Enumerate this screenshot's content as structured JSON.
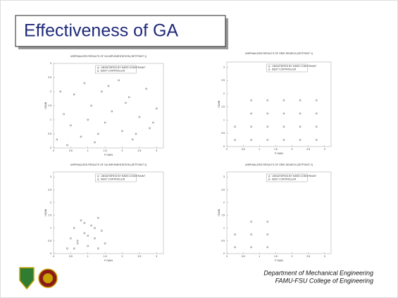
{
  "header": {
    "title": "Effectiveness of GA"
  },
  "chart_data": [
    {
      "type": "scatter",
      "title": "UNPENALIZED RESULTS OF GA IMPLEMENTATION (SETPOINT 1)",
      "x_label": "P GAIN",
      "y_label": "I GAIN",
      "legend": [
        "UNSATISFIED BY HARD CONSTRAINT",
        "BEST CONTROLLER"
      ],
      "color": "#555555",
      "x": [
        0.1,
        0.3,
        0.5,
        0.6,
        0.8,
        0.9,
        1.1,
        1.2,
        1.4,
        1.5,
        1.7,
        1.9,
        2.0,
        2.2,
        2.3,
        2.5,
        2.7,
        2.8,
        3.0,
        0.4,
        1.0,
        1.6,
        2.4,
        0.2,
        1.3,
        2.1,
        2.9
      ],
      "y": [
        0.3,
        1.2,
        0.8,
        1.9,
        0.4,
        2.3,
        1.5,
        0.2,
        2.0,
        0.9,
        1.3,
        2.4,
        0.6,
        1.8,
        0.3,
        1.1,
        2.1,
        0.7,
        1.4,
        0.1,
        1.0,
        2.2,
        0.5,
        2.0,
        0.5,
        1.6,
        0.9
      ],
      "xlim": [
        0,
        3.2
      ],
      "ylim": [
        0,
        3
      ],
      "xticks": [
        0,
        0.5,
        1,
        1.5,
        2,
        2.5,
        3
      ],
      "yticks": [
        0,
        0.5,
        1,
        1.5,
        2,
        2.5,
        3
      ]
    },
    {
      "type": "scatter",
      "title": "UNPENALIZED RESULTS OF GRID SEARCH (SETPOINT 1)",
      "x_label": "P GAIN",
      "y_label": "I GAIN",
      "legend": [
        "UNSATISFIED BY HARD CONSTRAINT",
        "BEST CONTROLLER"
      ],
      "color": "#555555",
      "x": [
        0.25,
        0.25,
        0.75,
        0.75,
        0.75,
        0.75,
        1.25,
        1.25,
        1.25,
        1.25,
        1.75,
        1.75,
        1.75,
        1.75,
        2.25,
        2.25,
        2.25,
        2.25,
        2.75,
        2.75,
        2.75,
        2.75
      ],
      "y": [
        0.25,
        0.75,
        0.25,
        0.75,
        1.25,
        1.75,
        0.25,
        0.75,
        1.25,
        1.75,
        0.25,
        0.75,
        1.25,
        1.75,
        0.25,
        0.75,
        1.25,
        1.75,
        0.25,
        0.75,
        1.25,
        1.75
      ],
      "xlim": [
        0,
        3.2
      ],
      "ylim": [
        0,
        3.2
      ],
      "xticks": [
        0,
        0.5,
        1,
        1.5,
        2,
        2.5,
        3
      ],
      "yticks": [
        0,
        0.5,
        1,
        1.5,
        2,
        2.5,
        3
      ]
    },
    {
      "type": "scatter",
      "title": "UNPENALIZED RESULTS OF GA IMPLEMENTATION (SETPOINT 2)",
      "x_label": "P GAIN",
      "y_label": "I GAIN",
      "legend": [
        "UNSATISFIED BY HARD CONSTRAINT",
        "BEST CONTROLLER"
      ],
      "color": "#555555",
      "x": [
        0.4,
        0.5,
        0.6,
        0.7,
        0.8,
        0.9,
        1.0,
        1.1,
        1.2,
        1.3,
        1.4,
        1.5,
        0.6,
        0.9,
        1.2,
        1.0,
        0.7,
        1.3
      ],
      "y": [
        0.2,
        0.6,
        1.0,
        0.4,
        1.3,
        0.8,
        0.3,
        1.1,
        0.6,
        1.4,
        0.9,
        0.4,
        0.2,
        1.2,
        1.0,
        0.7,
        0.5,
        0.2
      ],
      "xlim": [
        0,
        3.2
      ],
      "ylim": [
        0,
        3.2
      ],
      "xticks": [
        0,
        0.5,
        1,
        1.5,
        2,
        2.5,
        3
      ],
      "yticks": [
        0,
        0.5,
        1,
        1.5,
        2,
        2.5,
        3
      ]
    },
    {
      "type": "scatter",
      "title": "UNPENALIZED RESULTS OF GRID SEARCH (SETPOINT 2)",
      "x_label": "P GAIN",
      "y_label": "I GAIN",
      "legend": [
        "UNSATISFIED BY HARD CONSTRAINT",
        "BEST CONTROLLER"
      ],
      "color": "#555555",
      "x": [
        0.25,
        0.25,
        0.75,
        0.75,
        0.75,
        1.25,
        1.25,
        1.25
      ],
      "y": [
        0.25,
        0.75,
        0.25,
        0.75,
        1.25,
        0.25,
        0.75,
        1.25
      ],
      "xlim": [
        0,
        3.2
      ],
      "ylim": [
        0,
        3.2
      ],
      "xticks": [
        0,
        0.5,
        1,
        1.5,
        2,
        2.5,
        3
      ],
      "yticks": [
        0,
        0.5,
        1,
        1.5,
        2,
        2.5,
        3
      ]
    }
  ],
  "footer": {
    "lines": [
      "Department of Mechanical Engineering",
      "FAMU-FSU College of Engineering"
    ]
  }
}
